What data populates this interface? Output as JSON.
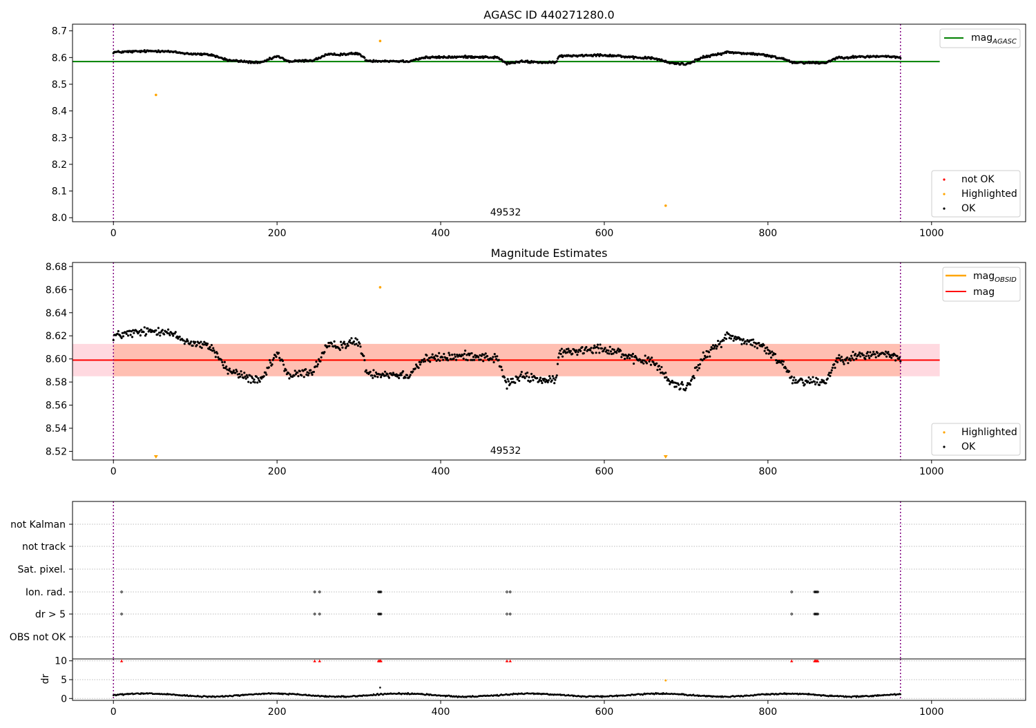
{
  "chart_data": [
    {
      "type": "scatter",
      "title": "AGASC ID 440271280.0",
      "xlabel": "",
      "ylabel": "",
      "xlim": [
        -50,
        1115
      ],
      "ylim": [
        7.985,
        8.725
      ],
      "xticks": [
        0,
        200,
        400,
        600,
        800,
        1000
      ],
      "yticks": [
        8.0,
        8.1,
        8.2,
        8.3,
        8.4,
        8.5,
        8.6,
        8.7
      ],
      "obsid_label": "49532",
      "obs_boundaries": [
        0,
        962
      ],
      "hline": {
        "name": "mag",
        "sub": "AGASC",
        "y": 8.585,
        "x_range": [
          -50,
          1010
        ],
        "color": "#008000"
      },
      "legend_top": {
        "entries": [
          {
            "name": "mag",
            "sub": "AGASC",
            "color": "#008000",
            "kind": "line"
          }
        ],
        "position": "top-right"
      },
      "legend_bottom": {
        "entries": [
          {
            "name": "not OK",
            "color": "#ff0000",
            "kind": "dot"
          },
          {
            "name": "Highlighted",
            "color": "#ffa500",
            "kind": "dot"
          },
          {
            "name": "OK",
            "color": "#000000",
            "kind": "dot"
          }
        ],
        "position": "bottom-right"
      },
      "highlighted_points": [
        {
          "x": 52,
          "y": 8.46
        },
        {
          "x": 326,
          "y": 8.662
        },
        {
          "x": 675,
          "y": 8.045
        }
      ],
      "trend_knots": [
        [
          0,
          8.62
        ],
        [
          20,
          8.622
        ],
        [
          60,
          8.625
        ],
        [
          90,
          8.615
        ],
        [
          120,
          8.61
        ],
        [
          140,
          8.59
        ],
        [
          180,
          8.58
        ],
        [
          200,
          8.605
        ],
        [
          215,
          8.585
        ],
        [
          245,
          8.59
        ],
        [
          260,
          8.61
        ],
        [
          300,
          8.615
        ],
        [
          310,
          8.588
        ],
        [
          360,
          8.586
        ],
        [
          380,
          8.6
        ],
        [
          440,
          8.603
        ],
        [
          470,
          8.6
        ],
        [
          480,
          8.578
        ],
        [
          500,
          8.585
        ],
        [
          540,
          8.58
        ],
        [
          545,
          8.605
        ],
        [
          590,
          8.61
        ],
        [
          620,
          8.606
        ],
        [
          630,
          8.6
        ],
        [
          660,
          8.598
        ],
        [
          680,
          8.58
        ],
        [
          700,
          8.575
        ],
        [
          720,
          8.6
        ],
        [
          750,
          8.62
        ],
        [
          790,
          8.612
        ],
        [
          820,
          8.595
        ],
        [
          830,
          8.582
        ],
        [
          870,
          8.58
        ],
        [
          885,
          8.6
        ],
        [
          940,
          8.605
        ],
        [
          962,
          8.6
        ]
      ]
    },
    {
      "type": "scatter",
      "title": "Magnitude Estimates",
      "xlabel": "",
      "ylabel": "",
      "xlim": [
        -50,
        1115
      ],
      "ylim": [
        8.5125,
        8.6835
      ],
      "xticks": [
        0,
        200,
        400,
        600,
        800,
        1000
      ],
      "yticks": [
        8.52,
        8.54,
        8.56,
        8.58,
        8.6,
        8.62,
        8.64,
        8.66,
        8.68
      ],
      "obsid_label": "49532",
      "obs_boundaries": [
        0,
        962
      ],
      "mag_line": {
        "name": "mag",
        "y": 8.599,
        "x_range": [
          -50,
          1010
        ],
        "color": "#ff0000"
      },
      "mag_band": {
        "y_low": 8.585,
        "y_high": 8.613,
        "x_range": [
          -50,
          1010
        ],
        "color": "#ffc0cb"
      },
      "mag_obsid": {
        "name": "mag",
        "sub": "OBSID",
        "y": 8.599,
        "y_low": 8.585,
        "y_high": 8.613,
        "x_range": [
          0,
          962
        ],
        "color": "#ffa500"
      },
      "legend_top": {
        "entries": [
          {
            "name": "mag",
            "sub": "OBSID",
            "color": "#ffa500",
            "kind": "line"
          },
          {
            "name": "mag",
            "sub": "",
            "color": "#ff0000",
            "kind": "line"
          }
        ],
        "position": "top-right"
      },
      "legend_bottom": {
        "entries": [
          {
            "name": "Highlighted",
            "color": "#ffa500",
            "kind": "dot"
          },
          {
            "name": "OK",
            "color": "#000000",
            "kind": "dot"
          }
        ],
        "position": "bottom-right"
      },
      "highlighted_points": [
        {
          "x": 326,
          "y": 8.662
        }
      ],
      "offscale_markers": [
        {
          "x": 52
        },
        {
          "x": 675
        }
      ]
    },
    {
      "type": "scatter",
      "title": "",
      "xlabel": "",
      "ylabel": "",
      "xlim": [
        -50,
        1115
      ],
      "xticks": [
        0,
        200,
        400,
        600,
        800,
        1000
      ],
      "obs_boundaries": [
        0,
        962
      ],
      "flag_rows": [
        "not Kalman",
        "not track",
        "Sat. pixel.",
        "Ion. rad.",
        "dr > 5",
        "OBS not OK"
      ],
      "flags": {
        "Ion. rad.": [
          10,
          246,
          252,
          324,
          325,
          326,
          327,
          481,
          485,
          829,
          857,
          858,
          859,
          860,
          861
        ],
        "dr > 5": [
          10,
          246,
          252,
          324,
          325,
          326,
          327,
          481,
          485,
          829,
          857,
          858,
          859,
          860,
          861
        ]
      }
    },
    {
      "type": "scatter",
      "title": "",
      "xlabel": "",
      "ylabel": "dr",
      "xlim": [
        -50,
        1115
      ],
      "ylim": [
        -0.5,
        10.5
      ],
      "yticks": [
        0,
        5,
        10
      ],
      "xticks": [
        0,
        200,
        400,
        600,
        800,
        1000
      ],
      "obs_boundaries": [
        0,
        962
      ],
      "clipped_points": [
        10,
        246,
        252,
        324,
        325,
        326,
        327,
        481,
        485,
        829,
        857,
        858,
        859,
        860,
        861
      ],
      "highlighted_points": [
        {
          "x": 675,
          "y": 4.8
        }
      ],
      "extra_points": [
        {
          "x": 326,
          "y": 2.9
        }
      ]
    }
  ]
}
